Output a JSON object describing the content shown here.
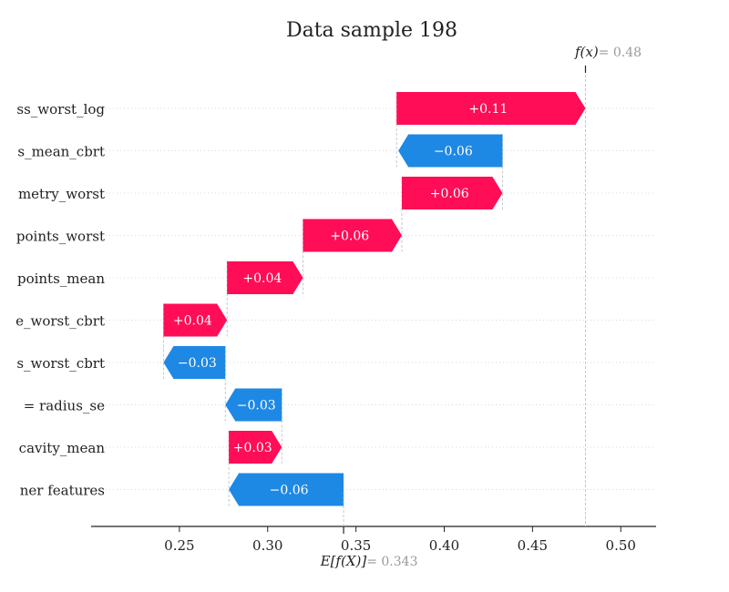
{
  "chart_data": {
    "type": "waterfall",
    "title": "Data sample 198",
    "xlim": [
      0.2,
      0.52
    ],
    "xticks": [
      0.25,
      0.3,
      0.35,
      0.4,
      0.45,
      0.5
    ],
    "xtick_labels": [
      "0.25",
      "0.30",
      "0.35",
      "0.40",
      "0.45",
      "0.50"
    ],
    "base_value": 0.343,
    "base_label": "E[f(X)]",
    "base_value_label": "= 0.343",
    "output_value": 0.48,
    "output_label": "f(x)",
    "output_value_label": "= 0.48",
    "colors": {
      "positive": "#ff0d57",
      "negative": "#1e88e5"
    },
    "features": [
      {
        "label": "ss_worst_log",
        "start": 0.373,
        "end": 0.48,
        "text": "+0.11"
      },
      {
        "label": "s_mean_cbrt",
        "start": 0.433,
        "end": 0.374,
        "text": "−0.06"
      },
      {
        "label": "metry_worst",
        "start": 0.376,
        "end": 0.433,
        "text": "+0.06"
      },
      {
        "label": "points_worst",
        "start": 0.32,
        "end": 0.376,
        "text": "+0.06"
      },
      {
        "label": "points_mean",
        "start": 0.277,
        "end": 0.32,
        "text": "+0.04"
      },
      {
        "label": "e_worst_cbrt",
        "start": 0.241,
        "end": 0.277,
        "text": "+0.04"
      },
      {
        "label": "s_worst_cbrt",
        "start": 0.276,
        "end": 0.241,
        "text": "−0.03"
      },
      {
        "label": "= radius_se",
        "start": 0.308,
        "end": 0.276,
        "text": "−0.03"
      },
      {
        "label": "cavity_mean",
        "start": 0.278,
        "end": 0.308,
        "text": "+0.03"
      },
      {
        "label": "ner features",
        "start": 0.343,
        "end": 0.278,
        "text": "−0.06"
      }
    ]
  }
}
